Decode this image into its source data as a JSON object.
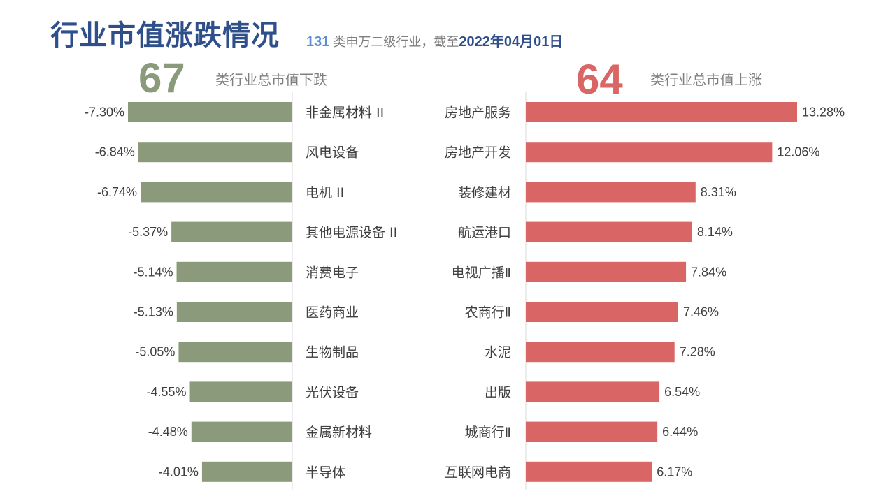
{
  "header": {
    "title": "行业市值涨跌情况",
    "subtitle_count": "131",
    "subtitle_text": " 类申万二级行业，截至",
    "subtitle_date": "2022年04月01日"
  },
  "summary": {
    "down_count": "67",
    "down_label": "类行业总市值下跌",
    "up_count": "64",
    "up_label": "类行业总市值上涨"
  },
  "colors": {
    "down_bar": "#8a9a7a",
    "up_bar": "#d96565",
    "title": "#2e4f8a",
    "axis": "#d9d9d9"
  },
  "chart_data": [
    {
      "type": "bar",
      "orientation": "horizontal",
      "direction": "down",
      "title": "",
      "xlabel": "",
      "ylabel": "",
      "categories": [
        "非金属材料 II",
        "风电设备",
        "电机 II",
        "其他电源设备 II",
        "消费电子",
        "医药商业",
        "生物制品",
        "光伏设备",
        "金属新材料",
        "半导体"
      ],
      "values": [
        -7.3,
        -6.84,
        -6.74,
        -5.37,
        -5.14,
        -5.13,
        -5.05,
        -4.55,
        -4.48,
        -4.01
      ],
      "value_labels": [
        "-7.30%",
        "-6.84%",
        "-6.74%",
        "-5.37%",
        "-5.14%",
        "-5.13%",
        "-5.05%",
        "-4.55%",
        "-4.48%",
        "-4.01%"
      ],
      "xlim": [
        -7.5,
        0
      ]
    },
    {
      "type": "bar",
      "orientation": "horizontal",
      "direction": "up",
      "title": "",
      "xlabel": "",
      "ylabel": "",
      "categories": [
        "房地产服务",
        "房地产开发",
        "装修建材",
        "航运港口",
        "电视广播Ⅱ",
        "农商行Ⅱ",
        "水泥",
        "出版",
        "城商行Ⅱ",
        "互联网电商"
      ],
      "values": [
        13.28,
        12.06,
        8.31,
        8.14,
        7.84,
        7.46,
        7.28,
        6.54,
        6.44,
        6.17
      ],
      "value_labels": [
        "13.28%",
        "12.06%",
        "8.31%",
        "8.14%",
        "7.84%",
        "7.46%",
        "7.28%",
        "6.54%",
        "6.44%",
        "6.17%"
      ],
      "xlim": [
        0,
        13.5
      ]
    }
  ]
}
